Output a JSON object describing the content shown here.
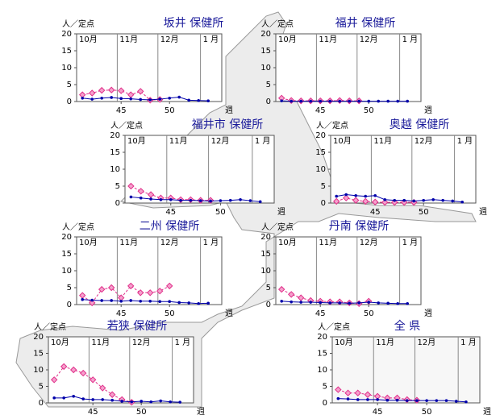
{
  "chart_data": [
    {
      "type": "line",
      "title": "坂井 保健所",
      "ylabel": "人／定点",
      "xlabel": "週",
      "x": [
        41,
        42,
        43,
        44,
        45,
        46,
        47,
        48,
        49,
        50,
        51,
        52,
        53,
        54
      ],
      "xlim": [
        40.4,
        55.4
      ],
      "xticks": [
        45,
        50
      ],
      "ylim": [
        0,
        20
      ],
      "yticks": [
        0,
        5,
        10,
        15,
        20
      ],
      "month_labels": [
        "10月",
        "11月",
        "12月",
        "1 月"
      ],
      "month_starts": [
        40.4,
        44.6,
        48.8,
        53.2
      ],
      "series": [
        {
          "color": "#e0308a",
          "values": [
            2,
            2.5,
            3.3,
            3.4,
            3.2,
            2,
            3,
            0.4,
            0.6,
            null,
            null,
            null,
            null,
            null
          ]
        },
        {
          "color": "#0000aa",
          "values": [
            1,
            0.7,
            1,
            1.2,
            0.9,
            0.8,
            0.6,
            0.5,
            0.7,
            1,
            1.3,
            0.4,
            0.3,
            0.2
          ]
        }
      ]
    },
    {
      "type": "line",
      "title": "福井 保健所",
      "ylabel": "人／定点",
      "xlabel": "週",
      "x": [
        41,
        42,
        43,
        44,
        45,
        46,
        47,
        48,
        49,
        50,
        51,
        52,
        53,
        54
      ],
      "xlim": [
        40.4,
        55.4
      ],
      "xticks": [
        45,
        50
      ],
      "ylim": [
        0,
        20
      ],
      "yticks": [
        0,
        5,
        10,
        15,
        20
      ],
      "month_labels": [
        "10月",
        "11月",
        "12月",
        "1 月"
      ],
      "month_starts": [
        40.4,
        44.6,
        48.8,
        53.2
      ],
      "series": [
        {
          "color": "#e0308a",
          "values": [
            1,
            0.3,
            0.2,
            0.2,
            0.2,
            0.2,
            0.3,
            0.2,
            0.2,
            null,
            null,
            null,
            null,
            null
          ]
        },
        {
          "color": "#0000aa",
          "values": [
            0.2,
            0.1,
            0.1,
            0.1,
            0.1,
            0.1,
            0.1,
            0.1,
            0.1,
            0.1,
            0.1,
            0.1,
            0.1,
            0.1
          ]
        }
      ]
    },
    {
      "type": "line",
      "title": "福井市 保健所",
      "ylabel": "人／定点",
      "xlabel": "週",
      "x": [
        41,
        42,
        43,
        44,
        45,
        46,
        47,
        48,
        49,
        50,
        51,
        52,
        53,
        54
      ],
      "xlim": [
        40.4,
        55.4
      ],
      "xticks": [
        45,
        50
      ],
      "ylim": [
        0,
        20
      ],
      "yticks": [
        0,
        5,
        10,
        15,
        20
      ],
      "month_labels": [
        "10月",
        "11月",
        "12月",
        "1 月"
      ],
      "month_starts": [
        40.4,
        44.6,
        48.8,
        53.2
      ],
      "series": [
        {
          "color": "#e0308a",
          "values": [
            5,
            3.5,
            2.5,
            1.5,
            1.5,
            1,
            1,
            0.8,
            0.8,
            null,
            null,
            null,
            null,
            null
          ]
        },
        {
          "color": "#0000aa",
          "values": [
            1.8,
            1.5,
            1.2,
            1,
            1,
            0.8,
            0.8,
            0.7,
            0.6,
            0.7,
            0.8,
            1,
            0.7,
            0.4
          ]
        }
      ]
    },
    {
      "type": "line",
      "title": "奥越 保健所",
      "ylabel": "人／定点",
      "xlabel": "週",
      "x": [
        41,
        42,
        43,
        44,
        45,
        46,
        47,
        48,
        49,
        50,
        51,
        52,
        53,
        54
      ],
      "xlim": [
        40.4,
        55.4
      ],
      "xticks": [
        45,
        50
      ],
      "ylim": [
        0,
        20
      ],
      "yticks": [
        0,
        5,
        10,
        15,
        20
      ],
      "month_labels": [
        "10月",
        "11月",
        "12月",
        "1 月"
      ],
      "month_starts": [
        40.4,
        44.6,
        48.8,
        53.2
      ],
      "series": [
        {
          "color": "#e0308a",
          "values": [
            0.5,
            1.5,
            0.8,
            0.5,
            0.3,
            0.2,
            0.2,
            0.2,
            0.2,
            null,
            null,
            null,
            null,
            null
          ]
        },
        {
          "color": "#0000aa",
          "values": [
            2,
            2.5,
            2.2,
            2,
            2.2,
            1,
            0.8,
            0.8,
            0.6,
            0.8,
            1,
            0.8,
            0.6,
            0.3
          ]
        }
      ]
    },
    {
      "type": "line",
      "title": "二州 保健所",
      "ylabel": "人／定点",
      "xlabel": "週",
      "x": [
        41,
        42,
        43,
        44,
        45,
        46,
        47,
        48,
        49,
        50,
        51,
        52,
        53,
        54
      ],
      "xlim": [
        40.4,
        55.4
      ],
      "xticks": [
        45,
        50
      ],
      "ylim": [
        0,
        20
      ],
      "yticks": [
        0,
        5,
        10,
        15,
        20
      ],
      "month_labels": [
        "10月",
        "11月",
        "12月",
        "1 月"
      ],
      "month_starts": [
        40.4,
        44.6,
        48.8,
        53.2
      ],
      "series": [
        {
          "color": "#e0308a",
          "values": [
            2.7,
            0.5,
            4.5,
            5,
            2,
            5.5,
            3.5,
            3.5,
            4,
            5.5,
            null,
            null,
            null,
            null
          ]
        },
        {
          "color": "#0000aa",
          "values": [
            1.5,
            1.3,
            1.2,
            1.2,
            1,
            1.2,
            1,
            1,
            0.9,
            0.9,
            0.6,
            0.5,
            0.3,
            0.4
          ]
        }
      ]
    },
    {
      "type": "line",
      "title": "丹南 保健所",
      "ylabel": "人／定点",
      "xlabel": "週",
      "x": [
        41,
        42,
        43,
        44,
        45,
        46,
        47,
        48,
        49,
        50,
        51,
        52,
        53,
        54
      ],
      "xlim": [
        40.4,
        55.4
      ],
      "xticks": [
        45,
        50
      ],
      "ylim": [
        0,
        20
      ],
      "yticks": [
        0,
        5,
        10,
        15,
        20
      ],
      "month_labels": [
        "10月",
        "11月",
        "12月",
        "1 月"
      ],
      "month_starts": [
        40.4,
        44.6,
        48.8,
        53.2
      ],
      "series": [
        {
          "color": "#e0308a",
          "values": [
            4.5,
            3,
            2,
            1.2,
            1,
            0.8,
            0.8,
            0.5,
            0.3,
            1,
            null,
            null,
            null,
            null
          ]
        },
        {
          "color": "#0000aa",
          "values": [
            1,
            0.8,
            0.7,
            0.7,
            0.6,
            0.5,
            0.5,
            0.4,
            0.5,
            0.7,
            0.5,
            0.4,
            0.3,
            0.3
          ]
        }
      ]
    },
    {
      "type": "line",
      "title": "若狭 保健所",
      "ylabel": "人／定点",
      "xlabel": "週",
      "x": [
        41,
        42,
        43,
        44,
        45,
        46,
        47,
        48,
        49,
        50,
        51,
        52,
        53,
        54
      ],
      "xlim": [
        40.4,
        55.4
      ],
      "xticks": [
        45,
        50
      ],
      "ylim": [
        0,
        20
      ],
      "yticks": [
        0,
        5,
        10,
        15,
        20
      ],
      "month_labels": [
        "10月",
        "11月",
        "12月",
        "1 月"
      ],
      "month_starts": [
        40.4,
        44.6,
        48.8,
        53.2
      ],
      "series": [
        {
          "color": "#e0308a",
          "values": [
            7,
            11,
            10,
            9,
            7,
            4.5,
            2.5,
            1,
            0.2,
            null,
            null,
            null,
            null,
            null
          ]
        },
        {
          "color": "#0000aa",
          "values": [
            1.5,
            1.5,
            2,
            1.2,
            1,
            1,
            0.8,
            0.5,
            0.3,
            0.5,
            0.3,
            0.6,
            0.3,
            0.2
          ]
        }
      ]
    },
    {
      "type": "line",
      "title": "全 県",
      "ylabel": "人／定点",
      "xlabel": "週",
      "x": [
        41,
        42,
        43,
        44,
        45,
        46,
        47,
        48,
        49,
        50,
        51,
        52,
        53,
        54
      ],
      "xlim": [
        40.4,
        55.4
      ],
      "xticks": [
        45,
        50
      ],
      "ylim": [
        0,
        20
      ],
      "yticks": [
        0,
        5,
        10,
        15,
        20
      ],
      "month_labels": [
        "10月",
        "11月",
        "12月",
        "1 月"
      ],
      "month_starts": [
        40.4,
        44.6,
        48.8,
        53.2
      ],
      "series": [
        {
          "color": "#e0308a",
          "values": [
            4,
            3,
            3,
            2.5,
            2,
            1.5,
            1.5,
            1,
            0.8,
            null,
            null,
            null,
            null,
            null
          ]
        },
        {
          "color": "#0000aa",
          "values": [
            1.3,
            1.2,
            1,
            1,
            1,
            0.8,
            0.8,
            0.7,
            0.7,
            0.7,
            0.7,
            0.7,
            0.5,
            0.3
          ]
        }
      ]
    }
  ]
}
